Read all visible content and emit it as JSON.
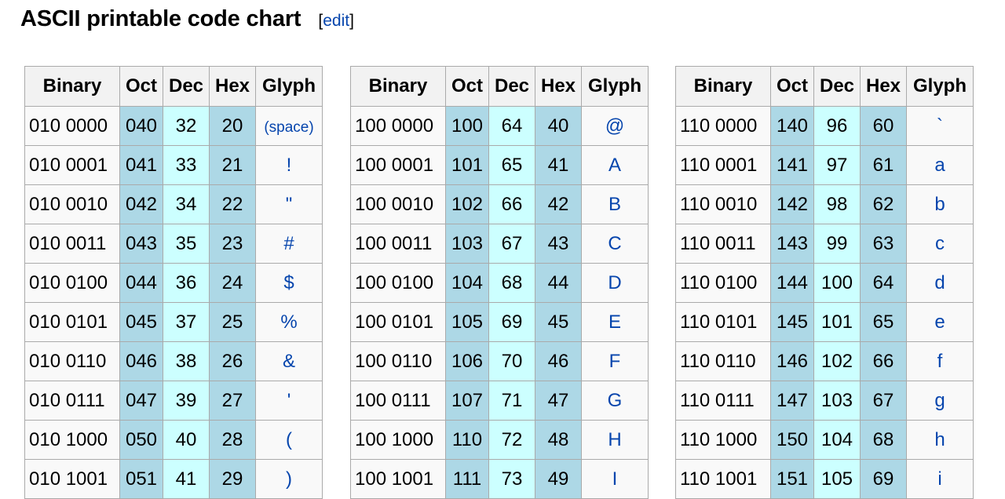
{
  "heading": {
    "title": "ASCII printable code chart",
    "edit_open": "[",
    "edit_label": "edit",
    "edit_close": "]"
  },
  "columns": [
    "Binary",
    "Oct",
    "Dec",
    "Hex",
    "Glyph"
  ],
  "tables": [
    {
      "rows": [
        {
          "bin": "010 0000",
          "oct": "040",
          "dec": "32",
          "hex": "20",
          "glyph": "(space)"
        },
        {
          "bin": "010 0001",
          "oct": "041",
          "dec": "33",
          "hex": "21",
          "glyph": "!"
        },
        {
          "bin": "010 0010",
          "oct": "042",
          "dec": "34",
          "hex": "22",
          "glyph": "\""
        },
        {
          "bin": "010 0011",
          "oct": "043",
          "dec": "35",
          "hex": "23",
          "glyph": "#"
        },
        {
          "bin": "010 0100",
          "oct": "044",
          "dec": "36",
          "hex": "24",
          "glyph": "$"
        },
        {
          "bin": "010 0101",
          "oct": "045",
          "dec": "37",
          "hex": "25",
          "glyph": "%"
        },
        {
          "bin": "010 0110",
          "oct": "046",
          "dec": "38",
          "hex": "26",
          "glyph": "&"
        },
        {
          "bin": "010 0111",
          "oct": "047",
          "dec": "39",
          "hex": "27",
          "glyph": "'"
        },
        {
          "bin": "010 1000",
          "oct": "050",
          "dec": "40",
          "hex": "28",
          "glyph": "("
        },
        {
          "bin": "010 1001",
          "oct": "051",
          "dec": "41",
          "hex": "29",
          "glyph": ")"
        }
      ]
    },
    {
      "rows": [
        {
          "bin": "100 0000",
          "oct": "100",
          "dec": "64",
          "hex": "40",
          "glyph": "@"
        },
        {
          "bin": "100 0001",
          "oct": "101",
          "dec": "65",
          "hex": "41",
          "glyph": "A"
        },
        {
          "bin": "100 0010",
          "oct": "102",
          "dec": "66",
          "hex": "42",
          "glyph": "B"
        },
        {
          "bin": "100 0011",
          "oct": "103",
          "dec": "67",
          "hex": "43",
          "glyph": "C"
        },
        {
          "bin": "100 0100",
          "oct": "104",
          "dec": "68",
          "hex": "44",
          "glyph": "D"
        },
        {
          "bin": "100 0101",
          "oct": "105",
          "dec": "69",
          "hex": "45",
          "glyph": "E"
        },
        {
          "bin": "100 0110",
          "oct": "106",
          "dec": "70",
          "hex": "46",
          "glyph": "F"
        },
        {
          "bin": "100 0111",
          "oct": "107",
          "dec": "71",
          "hex": "47",
          "glyph": "G"
        },
        {
          "bin": "100 1000",
          "oct": "110",
          "dec": "72",
          "hex": "48",
          "glyph": "H"
        },
        {
          "bin": "100 1001",
          "oct": "111",
          "dec": "73",
          "hex": "49",
          "glyph": "I"
        }
      ]
    },
    {
      "rows": [
        {
          "bin": "110 0000",
          "oct": "140",
          "dec": "96",
          "hex": "60",
          "glyph": "`"
        },
        {
          "bin": "110 0001",
          "oct": "141",
          "dec": "97",
          "hex": "61",
          "glyph": "a"
        },
        {
          "bin": "110 0010",
          "oct": "142",
          "dec": "98",
          "hex": "62",
          "glyph": "b"
        },
        {
          "bin": "110 0011",
          "oct": "143",
          "dec": "99",
          "hex": "63",
          "glyph": "c"
        },
        {
          "bin": "110 0100",
          "oct": "144",
          "dec": "100",
          "hex": "64",
          "glyph": "d"
        },
        {
          "bin": "110 0101",
          "oct": "145",
          "dec": "101",
          "hex": "65",
          "glyph": "e"
        },
        {
          "bin": "110 0110",
          "oct": "146",
          "dec": "102",
          "hex": "66",
          "glyph": "f"
        },
        {
          "bin": "110 0111",
          "oct": "147",
          "dec": "103",
          "hex": "67",
          "glyph": "g"
        },
        {
          "bin": "110 1000",
          "oct": "150",
          "dec": "104",
          "hex": "68",
          "glyph": "h"
        },
        {
          "bin": "110 1001",
          "oct": "151",
          "dec": "105",
          "hex": "69",
          "glyph": "i"
        }
      ]
    }
  ],
  "colors": {
    "oct_hex_bg": "#add8e6",
    "dec_bg": "#ccffff",
    "link": "#0645ad"
  }
}
